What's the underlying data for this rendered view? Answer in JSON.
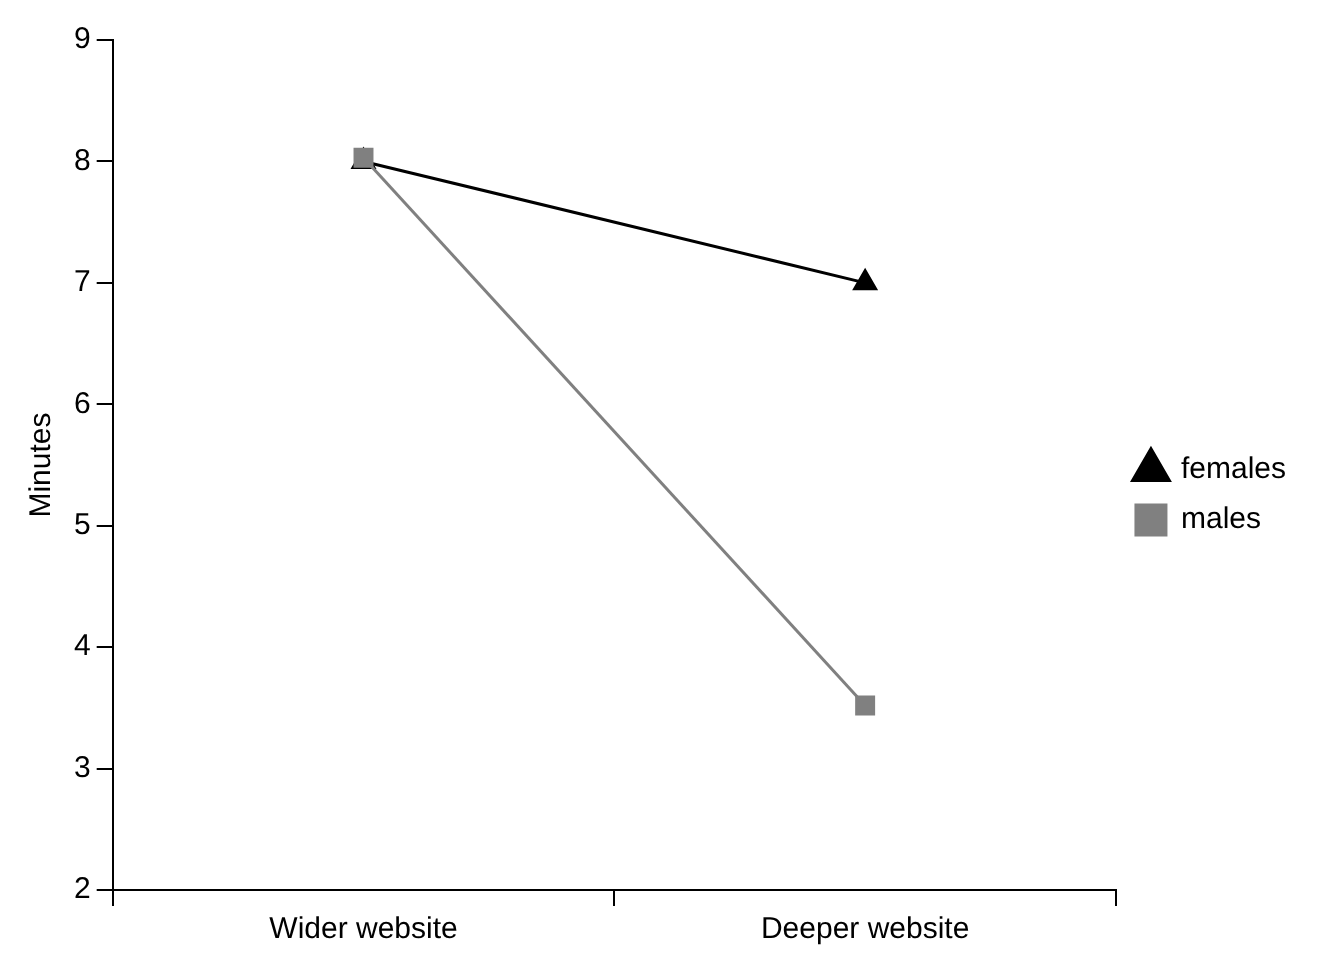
{
  "chart_data": {
    "type": "line",
    "ylabel": "Minutes",
    "categories": [
      "Wider website",
      "Deeper website"
    ],
    "series": [
      {
        "name": "females",
        "color": "#000000",
        "marker": "triangle",
        "values": [
          8,
          7
        ]
      },
      {
        "name": "males",
        "color": "#808080",
        "marker": "square",
        "values": [
          8.03,
          3.52
        ]
      }
    ],
    "ylim": [
      2,
      9
    ],
    "yticks": [
      2,
      3,
      4,
      5,
      6,
      7,
      8,
      9
    ],
    "grid": false,
    "legend": "right"
  }
}
